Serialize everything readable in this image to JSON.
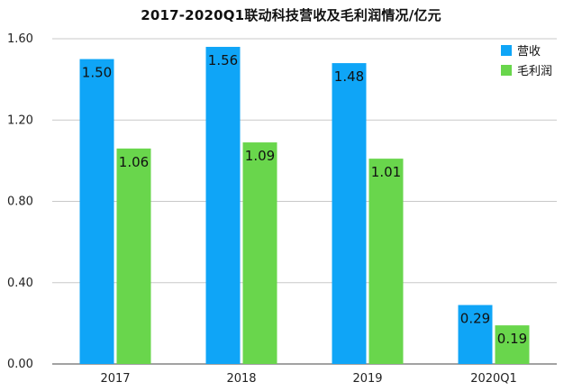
{
  "chart_data": {
    "type": "bar",
    "title": "2017-2020Q1联动科技营收及毛利润情况/亿元",
    "xlabel": "",
    "ylabel": "",
    "categories": [
      "2017",
      "2018",
      "2019",
      "2020Q1"
    ],
    "series": [
      {
        "name": "营收",
        "color": "#0fa5f7",
        "values": [
          1.5,
          1.56,
          1.48,
          0.29
        ],
        "labels": [
          "1.50",
          "1.56",
          "1.48",
          "0.29"
        ]
      },
      {
        "name": "毛利润",
        "color": "#69d64c",
        "values": [
          1.06,
          1.09,
          1.01,
          0.19
        ],
        "labels": [
          "1.06",
          "1.09",
          "1.01",
          "0.19"
        ]
      }
    ],
    "ylim": [
      0,
      1.6
    ],
    "yticks": [
      "0.00",
      "0.40",
      "0.80",
      "1.20",
      "1.60"
    ],
    "grid": true,
    "legend": "top-right"
  }
}
